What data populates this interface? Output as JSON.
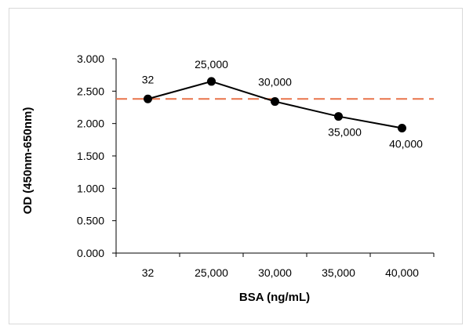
{
  "chart_data": {
    "type": "line",
    "title": "",
    "xlabel": "BSA (ng/mL)",
    "ylabel": "OD (450nm-650nm)",
    "categories": [
      "32",
      "25,000",
      "30,000",
      "35,000",
      "40,000"
    ],
    "series": [
      {
        "values": [
          2.38,
          2.65,
          2.34,
          2.11,
          1.93
        ],
        "data_labels": [
          "32",
          "25,000",
          "30,000",
          "35,000",
          "40,000"
        ],
        "color": "#000000"
      }
    ],
    "reference_line": {
      "value": 2.38,
      "style": "dashed",
      "color": "#e8734a"
    },
    "ylim": [
      0,
      3
    ],
    "yticks": [
      "0.000",
      "0.500",
      "1.000",
      "1.500",
      "2.000",
      "2.500",
      "3.000"
    ],
    "grid": false,
    "legend": "none"
  }
}
